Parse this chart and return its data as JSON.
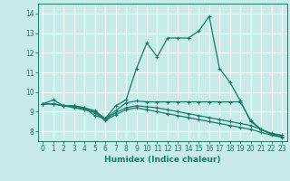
{
  "xlabel": "Humidex (Indice chaleur)",
  "bg_color": "#c8eaea",
  "grid_color": "#ffffff",
  "line_color": "#1a7a6a",
  "xlim": [
    -0.5,
    23.5
  ],
  "ylim": [
    7.5,
    14.5
  ],
  "xticks": [
    0,
    1,
    2,
    3,
    4,
    5,
    6,
    7,
    8,
    9,
    10,
    11,
    12,
    13,
    14,
    15,
    16,
    17,
    18,
    19,
    20,
    21,
    22,
    23
  ],
  "yticks": [
    8,
    9,
    10,
    11,
    12,
    13,
    14
  ],
  "lines": [
    {
      "x": [
        0,
        1,
        2,
        3,
        4,
        5,
        6,
        7,
        8,
        9,
        10,
        11,
        12,
        13,
        14,
        15,
        16,
        17,
        18,
        19,
        20,
        21,
        22,
        23
      ],
      "y": [
        9.4,
        9.6,
        9.3,
        9.3,
        9.2,
        8.8,
        8.65,
        9.3,
        9.6,
        11.2,
        12.5,
        11.8,
        12.75,
        12.75,
        12.75,
        13.1,
        13.85,
        11.2,
        10.5,
        9.55,
        8.5,
        8.1,
        7.85,
        7.75
      ]
    },
    {
      "x": [
        0,
        1,
        2,
        3,
        4,
        5,
        6,
        7,
        8,
        9,
        10,
        11,
        12,
        13,
        14,
        15,
        16,
        17,
        18,
        19,
        20,
        21,
        22,
        23
      ],
      "y": [
        9.4,
        9.4,
        9.3,
        9.3,
        9.2,
        9.05,
        8.65,
        9.05,
        9.45,
        9.55,
        9.5,
        9.5,
        9.5,
        9.5,
        9.5,
        9.5,
        9.5,
        9.5,
        9.5,
        9.5,
        8.55,
        8.1,
        7.9,
        7.8
      ]
    },
    {
      "x": [
        0,
        1,
        2,
        3,
        4,
        5,
        6,
        7,
        8,
        9,
        10,
        11,
        12,
        13,
        14,
        15,
        16,
        17,
        18,
        19,
        20,
        21,
        22,
        23
      ],
      "y": [
        9.4,
        9.4,
        9.3,
        9.25,
        9.15,
        9.0,
        8.6,
        8.95,
        9.2,
        9.3,
        9.25,
        9.2,
        9.1,
        9.0,
        8.9,
        8.8,
        8.7,
        8.6,
        8.5,
        8.4,
        8.3,
        8.1,
        7.85,
        7.75
      ]
    },
    {
      "x": [
        0,
        1,
        2,
        3,
        4,
        5,
        6,
        7,
        8,
        9,
        10,
        11,
        12,
        13,
        14,
        15,
        16,
        17,
        18,
        19,
        20,
        21,
        22,
        23
      ],
      "y": [
        9.4,
        9.4,
        9.3,
        9.2,
        9.1,
        8.95,
        8.55,
        8.85,
        9.1,
        9.2,
        9.1,
        9.0,
        8.9,
        8.8,
        8.7,
        8.6,
        8.5,
        8.4,
        8.3,
        8.2,
        8.1,
        7.95,
        7.8,
        7.7
      ]
    }
  ]
}
